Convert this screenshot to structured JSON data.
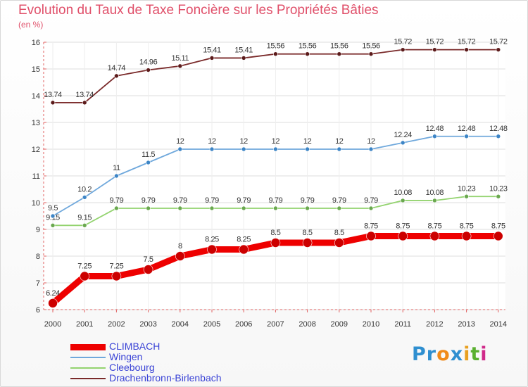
{
  "header": {
    "title": "Evolution du Taux de Taxe Foncière sur les Propriétés Bâties",
    "unit": "(en %)"
  },
  "brand": {
    "name": "Proxiti",
    "letters": [
      "P",
      "r",
      "o",
      "x",
      "i",
      "t",
      "i"
    ],
    "colors": [
      "#2f8fd0",
      "#2f8fd0",
      "#f08a1a",
      "#2f8fd0",
      "#e8a020",
      "#5ab030",
      "#d02a8a"
    ]
  },
  "chart_data": {
    "type": "line",
    "title": "Evolution du Taux de Taxe Foncière sur les Propriétés Bâties",
    "ylabel": "(en %)",
    "xlabel": "",
    "ylim": [
      6,
      16
    ],
    "y_ticks": [
      6,
      7,
      8,
      9,
      10,
      11,
      12,
      13,
      14,
      15,
      16
    ],
    "grid": true,
    "legend_position": "bottom-left",
    "categories": [
      "2000",
      "2001",
      "2002",
      "2003",
      "2004",
      "2005",
      "2006",
      "2007",
      "2008",
      "2009",
      "2010",
      "2011",
      "2012",
      "2013",
      "2014"
    ],
    "series": [
      {
        "name": "CLIMBACH",
        "color": "#ee0000",
        "marker_color": "#cc0000",
        "values": [
          6.24,
          7.25,
          7.25,
          7.5,
          8,
          8.25,
          8.25,
          8.5,
          8.5,
          8.5,
          8.75,
          8.75,
          8.75,
          8.75,
          8.75
        ],
        "labels": [
          "6.24",
          "7.25",
          "7.25",
          "7.5",
          "8",
          "8.25",
          "8.25",
          "8.5",
          "8.5",
          "8.5",
          "8.75",
          "8.75",
          "8.75",
          "8.75",
          "8.75"
        ]
      },
      {
        "name": "Wingen",
        "color": "#6fa8dc",
        "marker_color": "#3d85c6",
        "values": [
          9.5,
          10.2,
          11,
          11.5,
          12,
          12,
          12,
          12,
          12,
          12,
          12,
          12.24,
          12.48,
          12.48,
          12.48
        ],
        "labels": [
          "9.5",
          "10.2",
          "11",
          "11.5",
          "12",
          "12",
          "12",
          "12",
          "12",
          "12",
          "12",
          "12.24",
          "12.48",
          "12.48",
          "12.48"
        ]
      },
      {
        "name": "Cleebourg",
        "color": "#93d36f",
        "marker_color": "#6aa84f",
        "values": [
          9.15,
          9.15,
          9.79,
          9.79,
          9.79,
          9.79,
          9.79,
          9.79,
          9.79,
          9.79,
          9.79,
          10.08,
          10.08,
          10.23,
          10.23
        ],
        "labels": [
          "9.15",
          "9.15",
          "9.79",
          "9.79",
          "9.79",
          "9.79",
          "9.79",
          "9.79",
          "9.79",
          "9.79",
          "9.79",
          "10.08",
          "10.08",
          "10.23",
          "10.23"
        ]
      },
      {
        "name": "Drachenbronn-Birlenbach",
        "color": "#7a2a2a",
        "marker_color": "#5b1a1a",
        "values": [
          13.74,
          13.74,
          14.74,
          14.96,
          15.11,
          15.41,
          15.41,
          15.56,
          15.56,
          15.56,
          15.56,
          15.72,
          15.72,
          15.72,
          15.72
        ],
        "labels": [
          "13.74",
          "13.74",
          "14.74",
          "14.96",
          "15.11",
          "15.41",
          "15.41",
          "15.56",
          "15.56",
          "15.56",
          "15.56",
          "15.72",
          "15.72",
          "15.72",
          "15.72"
        ]
      }
    ]
  }
}
